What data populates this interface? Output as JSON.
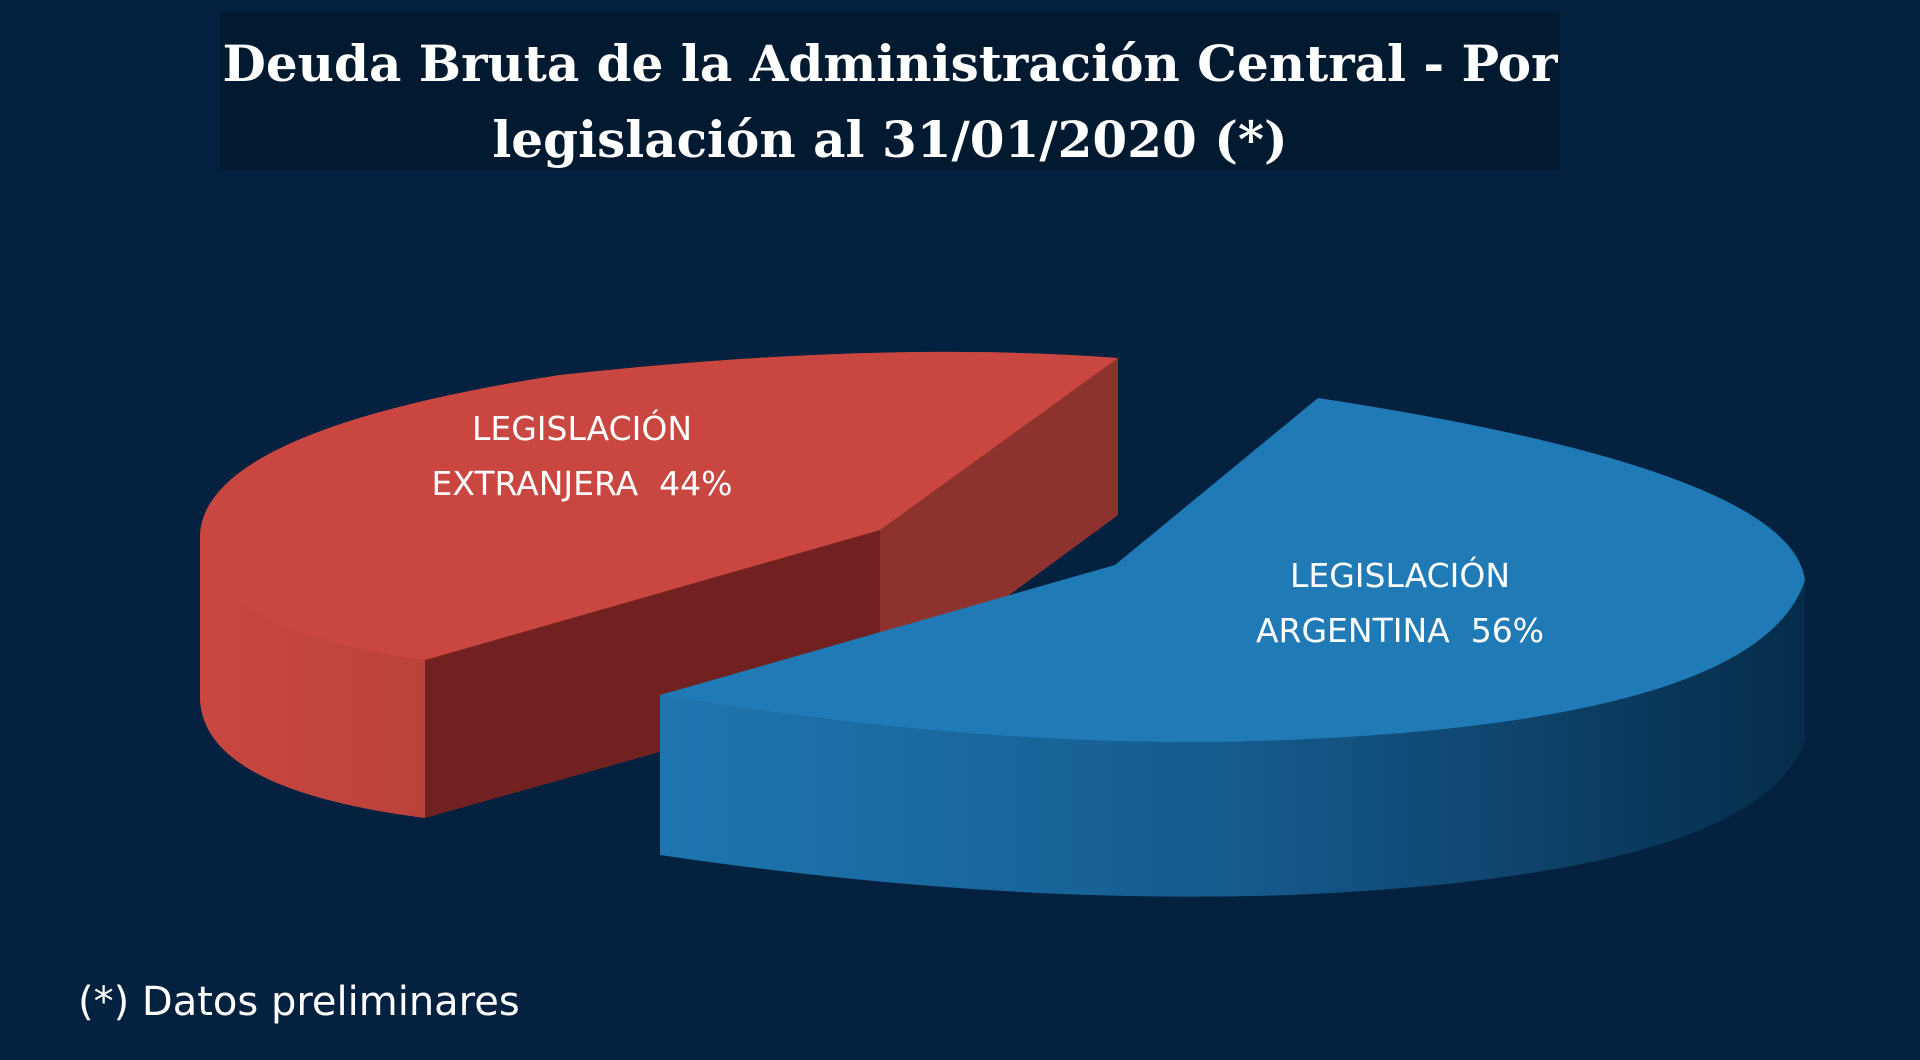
{
  "chart_data": {
    "type": "pie",
    "title_lines": [
      "Deuda Bruta de la Administración Central - Por",
      "legislación al 31/01/2020 (*)"
    ],
    "slices": [
      {
        "label_lines": [
          "LEGISLACIÓN",
          "EXTRANJERA  44%"
        ],
        "value": 44,
        "color": "#c94740",
        "side_color": "#7a2320"
      },
      {
        "label_lines": [
          "LEGISLACIÓN",
          "ARGENTINA  56%"
        ],
        "value": 56,
        "color": "#1f7ab6",
        "side_color": "#0b3f66"
      }
    ],
    "legend": "none",
    "exploded": true,
    "three_d": true
  },
  "footnote": "(*) Datos preliminares",
  "colors": {
    "background": "#04223f",
    "title_background": "#011a30"
  }
}
